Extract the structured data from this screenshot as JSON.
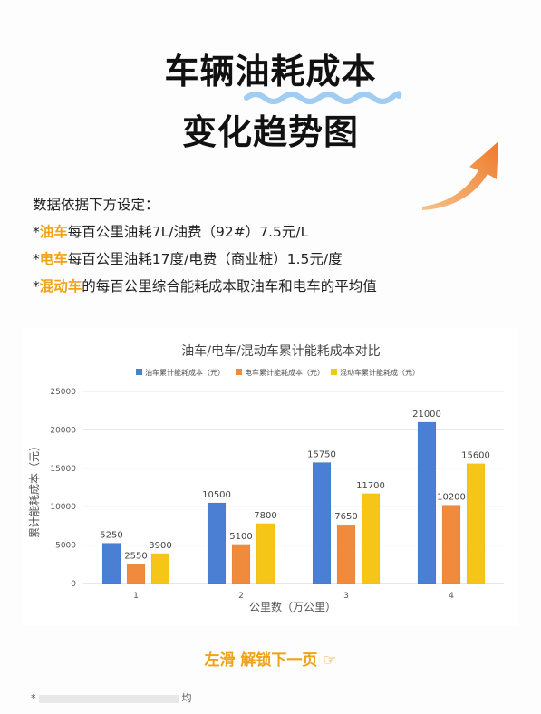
{
  "header": {
    "title_line1": "车辆油耗成本",
    "title_line2": "变化趋势图"
  },
  "notes": {
    "intro": "数据依据下方设定：",
    "line1": {
      "prefix": "*",
      "highlight": "油车",
      "rest": "每百公里油耗7L/油费（92#）7.5元/L"
    },
    "line2": {
      "prefix": "*",
      "highlight": "电车",
      "rest": "每百公里油耗17度/电费（商业桩）1.5元/度"
    },
    "line3": {
      "prefix": "*",
      "highlight": "混动车",
      "rest": "的每百公里综合能耗成本取油车和电车的平均值"
    }
  },
  "colors": {
    "accent": "#f0a218",
    "oil": "#4a7fd4",
    "electric": "#f08a3c",
    "hybrid": "#f5c518"
  },
  "chart_data": {
    "type": "bar",
    "title": "油车/电车/混动车累计能耗成本对比",
    "xlabel": "公里数（万公里）",
    "ylabel": "累计能耗成本（元）",
    "categories": [
      "1",
      "2",
      "3",
      "4"
    ],
    "ylim": [
      0,
      25000
    ],
    "yticks": [
      "0",
      "5000",
      "10000",
      "15000",
      "20000",
      "25000"
    ],
    "grid": true,
    "legend_position": "top",
    "series": [
      {
        "name": "油车累计能耗成本（元）",
        "values": [
          5250,
          10500,
          15750,
          21000
        ]
      },
      {
        "name": "电车累计能耗成本（元）",
        "values": [
          2550,
          5100,
          7650,
          10200
        ]
      },
      {
        "name": "混动车累计能耗成（元）",
        "values": [
          3900,
          7800,
          11700,
          15600
        ]
      }
    ]
  },
  "swipe_hint": "左滑 解锁下一页 ☞",
  "footer": {
    "start": "*",
    "end": "均"
  },
  "icons": {
    "arrow": "curved-arrow-icon",
    "wave": "wavy-underline-icon"
  }
}
